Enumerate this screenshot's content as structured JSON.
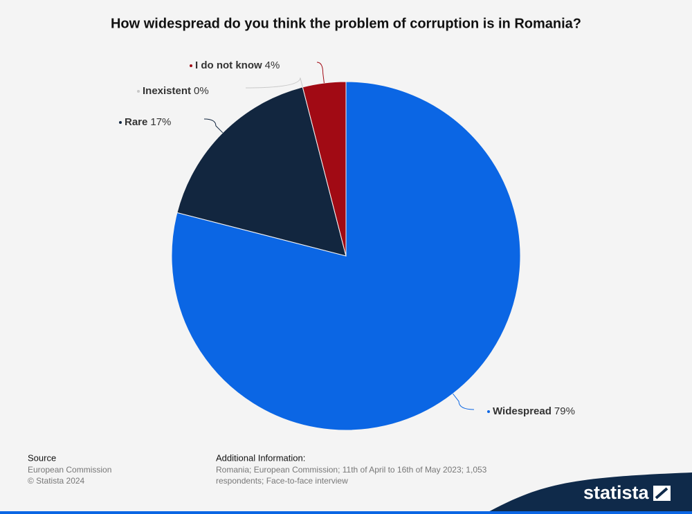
{
  "chart_data": {
    "type": "pie",
    "title": "How widespread do you think the problem of corruption is in Romania?",
    "categories": [
      "Widespread",
      "Rare",
      "Inexistent",
      "I do not know"
    ],
    "values": [
      79,
      17,
      0,
      4
    ],
    "value_labels": [
      "79%",
      "17%",
      "0%",
      "4%"
    ],
    "colors": [
      "#0b66e4",
      "#12263f",
      "#c8c8c8",
      "#a10a14"
    ]
  },
  "footer": {
    "source_heading": "Source",
    "source": "European Commission",
    "copyright": "© Statista 2024",
    "info_heading": "Additional Information:",
    "info_lines": [
      "Romania; European Commission; 11th of April to 16th of May 2023; 1,053",
      "respondents; Face-to-face interview"
    ],
    "logo": "statista"
  }
}
